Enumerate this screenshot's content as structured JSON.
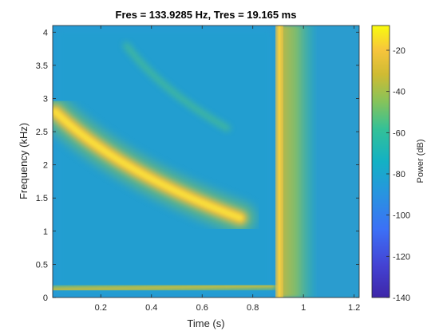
{
  "chart_data": {
    "type": "heatmap",
    "title": "Fres = 133.9285 Hz, Tres = 19.165 ms",
    "xlabel": "Time (s)",
    "ylabel": "Frequency (kHz)",
    "xlim": [
      0.01,
      1.22
    ],
    "ylim": [
      0,
      4.1
    ],
    "xticks": [
      "0.2",
      "0.4",
      "0.6",
      "0.8",
      "1",
      "1.2"
    ],
    "yticks": [
      "0",
      "0.5",
      "1",
      "1.5",
      "2",
      "2.5",
      "3",
      "3.5",
      "4"
    ],
    "colorbar": {
      "label": "Power (dB)",
      "range": [
        -140,
        -8
      ],
      "ticks": [
        "-20",
        "-40",
        "-60",
        "-80",
        "-100",
        "-120",
        "-140"
      ]
    },
    "features": [
      {
        "kind": "chirp",
        "t_start": 0.02,
        "t_end": 0.75,
        "f_start": 2.8,
        "f_end": 1.2,
        "peak_db": -15
      },
      {
        "kind": "chirp",
        "t_start": 0.3,
        "t_end": 0.7,
        "f_start": 3.8,
        "f_end": 2.55,
        "peak_db": -60
      },
      {
        "kind": "tone",
        "t_start": 0.01,
        "t_end": 0.88,
        "f": 0.12,
        "peak_db": -35
      },
      {
        "kind": "impulse",
        "t": 0.905,
        "peak_db": -18
      },
      {
        "kind": "noise",
        "t_start": 0.91,
        "t_end": 1.05,
        "peak_db": -45
      }
    ]
  }
}
